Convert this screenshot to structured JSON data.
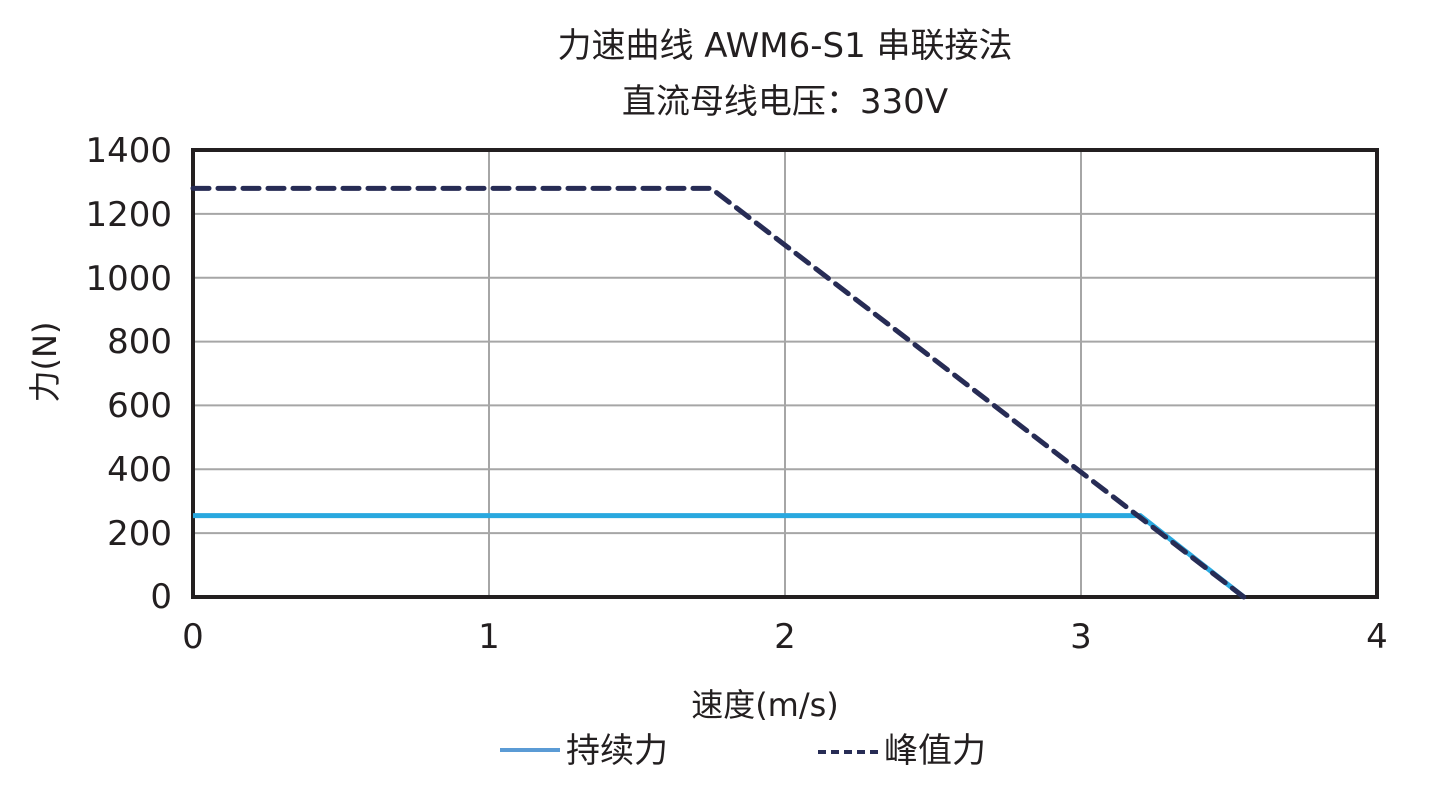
{
  "chart_data": {
    "type": "line",
    "title": "力速曲线 AWM6-S1 串联接法",
    "subtitle": "直流母线电压：330V",
    "xlabel": "速度(m/s)",
    "ylabel": "力(N)",
    "xlim": [
      0,
      4
    ],
    "ylim": [
      0,
      1400
    ],
    "x_ticks": [
      0,
      1,
      2,
      3,
      4
    ],
    "y_ticks": [
      0,
      200,
      400,
      600,
      800,
      1000,
      1200,
      1400
    ],
    "grid": true,
    "legend_position": "bottom",
    "series": [
      {
        "name": "持续力",
        "style": "solid",
        "color": "#29a8df",
        "x": [
          0,
          3.2,
          3.55
        ],
        "y": [
          255,
          255,
          0
        ]
      },
      {
        "name": "峰值力",
        "style": "dashed",
        "color": "#272c55",
        "x": [
          0,
          1.75,
          3.55
        ],
        "y": [
          1280,
          1280,
          0
        ]
      }
    ]
  },
  "labels": {
    "title": "力速曲线 AWM6-S1 串联接法",
    "subtitle": "直流母线电压：330V",
    "xlabel": "速度(m/s)",
    "ylabel": "力(N)",
    "x_ticks": [
      "0",
      "1",
      "2",
      "3",
      "4"
    ],
    "y_ticks": [
      "0",
      "200",
      "400",
      "600",
      "800",
      "1000",
      "1200",
      "1400"
    ],
    "legend": [
      "持续力",
      "峰值力"
    ]
  }
}
